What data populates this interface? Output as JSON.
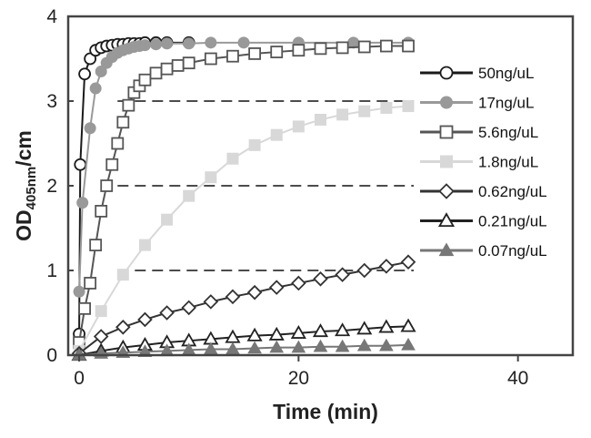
{
  "chart_data": {
    "type": "scatter",
    "xlabel": "Time (min)",
    "ylabel": {
      "main": "OD",
      "sub": "405nm",
      "unit": "/cm"
    },
    "xlim": [
      -1,
      45
    ],
    "ylim": [
      0,
      4
    ],
    "x_ticks": [
      0,
      20,
      40
    ],
    "y_ticks": [
      0,
      1,
      2,
      3,
      4
    ],
    "grid": "dashed horizontal at y = 1, 2, 3",
    "legend_position": "right",
    "series": [
      {
        "name": "50ng/uL",
        "marker": "circle-open",
        "color": "#1a1a1a",
        "points": [
          [
            0,
            0.25
          ],
          [
            0.1,
            2.25
          ],
          [
            0.5,
            3.32
          ],
          [
            1,
            3.5
          ],
          [
            1.5,
            3.6
          ],
          [
            2,
            3.63
          ],
          [
            2.5,
            3.65
          ],
          [
            3,
            3.66
          ],
          [
            3.5,
            3.67
          ],
          [
            4,
            3.67
          ],
          [
            4.5,
            3.68
          ],
          [
            5,
            3.68
          ],
          [
            5.5,
            3.68
          ],
          [
            6,
            3.69
          ],
          [
            7,
            3.69
          ],
          [
            8,
            3.69
          ],
          [
            10,
            3.69
          ]
        ]
      },
      {
        "name": "17ng/uL",
        "marker": "circle-filled",
        "color": "#999999",
        "points": [
          [
            0,
            0.75
          ],
          [
            0.3,
            1.8
          ],
          [
            1,
            2.68
          ],
          [
            1.5,
            3.15
          ],
          [
            2,
            3.35
          ],
          [
            2.5,
            3.45
          ],
          [
            3,
            3.52
          ],
          [
            3.5,
            3.57
          ],
          [
            4,
            3.6
          ],
          [
            4.5,
            3.62
          ],
          [
            5,
            3.64
          ],
          [
            5.5,
            3.65
          ],
          [
            6,
            3.66
          ],
          [
            7,
            3.67
          ],
          [
            8,
            3.68
          ],
          [
            10,
            3.68
          ],
          [
            12,
            3.69
          ],
          [
            15,
            3.69
          ],
          [
            20,
            3.69
          ],
          [
            25,
            3.69
          ],
          [
            30,
            3.69
          ]
        ]
      },
      {
        "name": "5.6ng/uL",
        "marker": "square-open",
        "color": "#555555",
        "points": [
          [
            0,
            0.15
          ],
          [
            0.5,
            0.55
          ],
          [
            1,
            0.85
          ],
          [
            1.5,
            1.3
          ],
          [
            2,
            1.7
          ],
          [
            2.5,
            2.0
          ],
          [
            3,
            2.25
          ],
          [
            3.5,
            2.5
          ],
          [
            4,
            2.75
          ],
          [
            4.5,
            2.95
          ],
          [
            5,
            3.1
          ],
          [
            5.5,
            3.18
          ],
          [
            6,
            3.25
          ],
          [
            7,
            3.33
          ],
          [
            8,
            3.38
          ],
          [
            9,
            3.42
          ],
          [
            10,
            3.45
          ],
          [
            12,
            3.5
          ],
          [
            14,
            3.53
          ],
          [
            16,
            3.56
          ],
          [
            18,
            3.58
          ],
          [
            20,
            3.6
          ],
          [
            22,
            3.62
          ],
          [
            24,
            3.63
          ],
          [
            26,
            3.64
          ],
          [
            28,
            3.65
          ],
          [
            30,
            3.65
          ]
        ]
      },
      {
        "name": "1.8ng/uL",
        "marker": "square-filled",
        "color": "#d8d8d8",
        "points": [
          [
            0,
            0.05
          ],
          [
            2,
            0.52
          ],
          [
            4,
            0.95
          ],
          [
            6,
            1.3
          ],
          [
            8,
            1.6
          ],
          [
            10,
            1.88
          ],
          [
            12,
            2.1
          ],
          [
            14,
            2.32
          ],
          [
            16,
            2.48
          ],
          [
            18,
            2.6
          ],
          [
            20,
            2.7
          ],
          [
            22,
            2.78
          ],
          [
            24,
            2.84
          ],
          [
            26,
            2.88
          ],
          [
            28,
            2.92
          ],
          [
            30,
            2.94
          ]
        ]
      },
      {
        "name": "0.62ng/uL",
        "marker": "diamond-open",
        "color": "#333333",
        "points": [
          [
            0,
            0.02
          ],
          [
            2,
            0.22
          ],
          [
            4,
            0.33
          ],
          [
            6,
            0.42
          ],
          [
            8,
            0.5
          ],
          [
            10,
            0.56
          ],
          [
            12,
            0.63
          ],
          [
            14,
            0.69
          ],
          [
            16,
            0.74
          ],
          [
            18,
            0.8
          ],
          [
            20,
            0.85
          ],
          [
            22,
            0.9
          ],
          [
            24,
            0.95
          ],
          [
            26,
            1.0
          ],
          [
            28,
            1.05
          ],
          [
            30,
            1.1
          ]
        ]
      },
      {
        "name": "0.21ng/uL",
        "marker": "triangle-open",
        "color": "#222222",
        "points": [
          [
            0,
            0.0
          ],
          [
            2,
            0.05
          ],
          [
            4,
            0.09
          ],
          [
            6,
            0.12
          ],
          [
            8,
            0.15
          ],
          [
            10,
            0.17
          ],
          [
            12,
            0.19
          ],
          [
            14,
            0.21
          ],
          [
            16,
            0.23
          ],
          [
            18,
            0.24
          ],
          [
            20,
            0.26
          ],
          [
            22,
            0.28
          ],
          [
            24,
            0.29
          ],
          [
            26,
            0.31
          ],
          [
            28,
            0.33
          ],
          [
            30,
            0.34
          ]
        ]
      },
      {
        "name": "0.07ng/uL",
        "marker": "triangle-filled",
        "color": "#777777",
        "points": [
          [
            0,
            0.0
          ],
          [
            2,
            0.02
          ],
          [
            4,
            0.03
          ],
          [
            6,
            0.04
          ],
          [
            8,
            0.05
          ],
          [
            10,
            0.06
          ],
          [
            12,
            0.07
          ],
          [
            14,
            0.07
          ],
          [
            16,
            0.08
          ],
          [
            18,
            0.09
          ],
          [
            20,
            0.09
          ],
          [
            22,
            0.1
          ],
          [
            24,
            0.1
          ],
          [
            26,
            0.11
          ],
          [
            28,
            0.11
          ],
          [
            30,
            0.12
          ]
        ]
      }
    ]
  }
}
